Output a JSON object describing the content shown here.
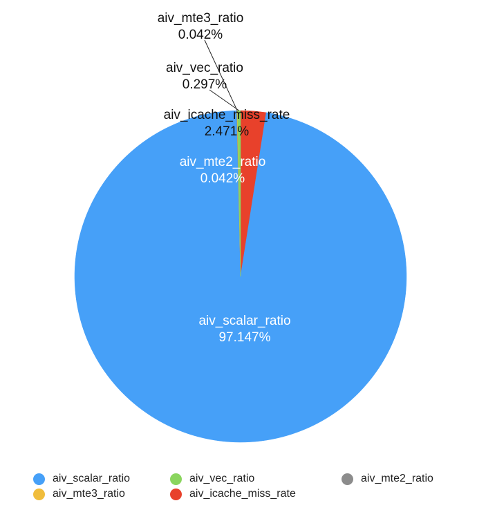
{
  "chart_data": {
    "type": "pie",
    "title": "",
    "slices": [
      {
        "name": "aiv_scalar_ratio",
        "value": 97.147,
        "label": "97.147%",
        "color": "#46a0f8",
        "label_color": "#ffffff"
      },
      {
        "name": "aiv_mte2_ratio",
        "value": 0.042,
        "label": "0.042%",
        "color": "#8c8c8c",
        "label_color": "#ffffff"
      },
      {
        "name": "aiv_mte3_ratio",
        "value": 0.042,
        "label": "0.042%",
        "color": "#f0bd3c",
        "label_color": "#111111"
      },
      {
        "name": "aiv_vec_ratio",
        "value": 0.297,
        "label": "0.297%",
        "color": "#8ad55e",
        "label_color": "#111111"
      },
      {
        "name": "aiv_icache_miss_rate",
        "value": 2.471,
        "label": "2.471%",
        "color": "#e8412b",
        "label_color": "#111111"
      }
    ],
    "legend": {
      "placement": "bottom",
      "items": [
        {
          "name": "aiv_scalar_ratio",
          "color": "#46a0f8"
        },
        {
          "name": "aiv_vec_ratio",
          "color": "#8ad55e"
        },
        {
          "name": "aiv_mte2_ratio",
          "color": "#8c8c8c"
        },
        {
          "name": "aiv_mte3_ratio",
          "color": "#f0bd3c"
        },
        {
          "name": "aiv_icache_miss_rate",
          "color": "#e8412b"
        }
      ]
    }
  }
}
